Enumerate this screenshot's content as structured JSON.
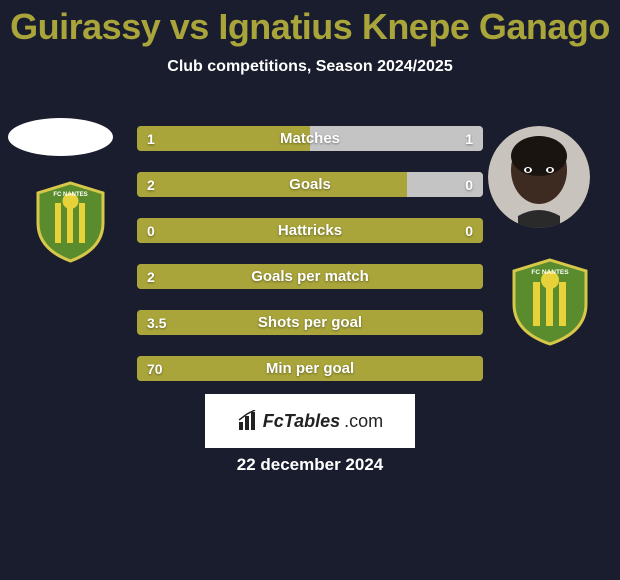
{
  "title": {
    "left_name": "Guirassy",
    "vs": "vs",
    "right_name": "Ignatius Knepe Ganago",
    "color": "#a9a53a"
  },
  "subtitle": "Club competitions, Season 2024/2025",
  "colors": {
    "bg": "#1a1d2e",
    "bar_left": "#a9a53a",
    "bar_right_empty": "#c4c4c4",
    "text_white": "#ffffff",
    "badge_green": "#5a8c2e",
    "badge_yellow": "#e8d23a",
    "badge_outline": "#d8c84a"
  },
  "stats": [
    {
      "label": "Matches",
      "left_val": "1",
      "right_val": "1",
      "left_pct": 50,
      "right_pct": 50
    },
    {
      "label": "Goals",
      "left_val": "2",
      "right_val": "0",
      "left_pct": 78,
      "right_pct": 22
    },
    {
      "label": "Hattricks",
      "left_val": "0",
      "right_val": "0",
      "left_pct": 100,
      "right_pct": 0
    },
    {
      "label": "Goals per match",
      "left_val": "2",
      "right_val": "",
      "left_pct": 100,
      "right_pct": 0
    },
    {
      "label": "Shots per goal",
      "left_val": "3.5",
      "right_val": "",
      "left_pct": 100,
      "right_pct": 0
    },
    {
      "label": "Min per goal",
      "left_val": "70",
      "right_val": "",
      "left_pct": 100,
      "right_pct": 0
    }
  ],
  "logo": {
    "brand": "FcTables",
    "suffix": ".com"
  },
  "date": "22 december 2024"
}
